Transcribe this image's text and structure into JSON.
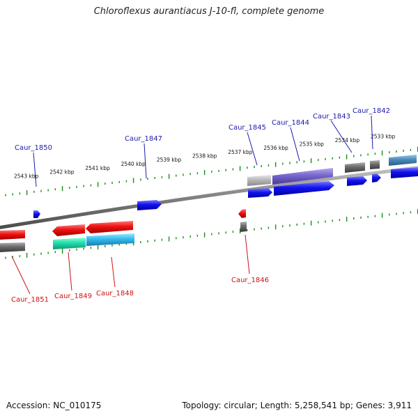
{
  "title": "Chloroflexus aurantiacus J-10-fl, complete genome",
  "footer": {
    "accession": "Accession: NC_010175",
    "topology": "Topology: circular; Length: 5,258,541 bp; Genes: 3,911"
  },
  "colors": {
    "backbone": "#8a8a8a",
    "ticks": "#1a8a1a",
    "label_forward": "#1a1aa8",
    "label_reverse": "#cc1111",
    "red": "#ee1111",
    "blue": "#1111ee",
    "gray": "#707070",
    "light_gray": "#b8b8b8",
    "purple": "#7766cc",
    "teal": "#4a8ab8",
    "green_cyan": "#22ddaa",
    "cyan": "#33bbee"
  },
  "scale_labels": [
    "2543 kbp",
    "2542 kbp",
    "2541 kbp",
    "2540 kbp",
    "2539 kbp",
    "2538 kbp",
    "2537 kbp",
    "2536 kbp",
    "2535 kbp",
    "2534 kbp",
    "2533 kbp"
  ],
  "gene_labels": {
    "forward": [
      "Caur_1850",
      "Caur_1847",
      "Caur_1845",
      "Caur_1844",
      "Caur_1843",
      "Caur_1842"
    ],
    "reverse": [
      "Caur_1851",
      "Caur_1849",
      "Caur_1848",
      "Caur_1846"
    ]
  }
}
